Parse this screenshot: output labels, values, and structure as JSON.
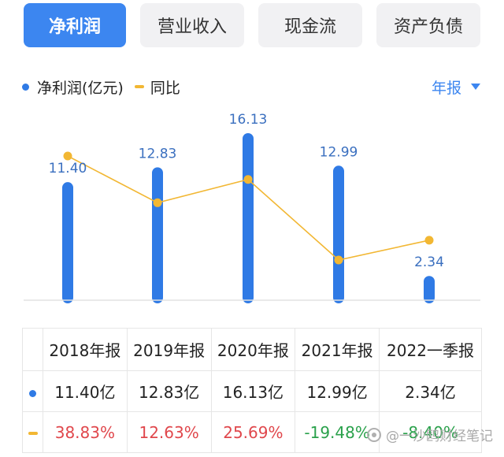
{
  "tabs": [
    {
      "label": "净利润",
      "active": true
    },
    {
      "label": "营业收入",
      "active": false
    },
    {
      "label": "现金流",
      "active": false
    },
    {
      "label": "资产负债",
      "active": false
    }
  ],
  "legend": {
    "bar_label": "净利润(亿元)",
    "line_label": "同比"
  },
  "period_select": {
    "value": "年报"
  },
  "colors": {
    "accent": "#3c86f0",
    "bar": "#2f7ae5",
    "line": "#f2b733",
    "positive": "#e0474c",
    "negative": "#2aa14b"
  },
  "chart_data": {
    "type": "bar",
    "categories": [
      "2018年报",
      "2019年报",
      "2020年报",
      "2021年报",
      "2022一季报"
    ],
    "series": [
      {
        "name": "净利润(亿元)",
        "type": "bar",
        "values": [
          11.4,
          12.83,
          16.13,
          12.99,
          2.34
        ],
        "labels": [
          "11.40",
          "12.83",
          "16.13",
          "12.99",
          "2.34"
        ]
      },
      {
        "name": "同比",
        "type": "line",
        "values": [
          38.83,
          12.63,
          25.69,
          -19.48,
          -8.4
        ]
      }
    ],
    "grid": false,
    "legend_position": "top-left"
  },
  "table": {
    "headers": [
      "2018年报",
      "2019年报",
      "2020年报",
      "2021年报",
      "2022一季报"
    ],
    "rows": [
      {
        "marker": "dot",
        "cells": [
          {
            "text": "11.40亿",
            "tone": ""
          },
          {
            "text": "12.83亿",
            "tone": ""
          },
          {
            "text": "16.13亿",
            "tone": ""
          },
          {
            "text": "12.99亿",
            "tone": ""
          },
          {
            "text": "2.34亿",
            "tone": ""
          }
        ]
      },
      {
        "marker": "dash",
        "cells": [
          {
            "text": "38.83%",
            "tone": "pos"
          },
          {
            "text": "12.63%",
            "tone": "pos"
          },
          {
            "text": "25.69%",
            "tone": "pos"
          },
          {
            "text": "-19.48%",
            "tone": "neg"
          },
          {
            "text": "-8.40%",
            "tone": "neg"
          }
        ]
      }
    ]
  },
  "watermark": {
    "text": "@一沙鸥财经笔记"
  }
}
